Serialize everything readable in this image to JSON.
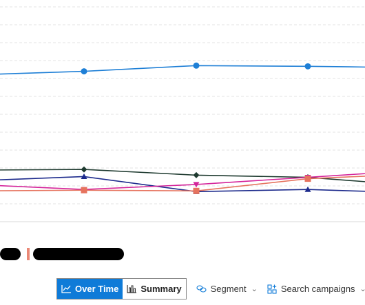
{
  "chart_data": {
    "type": "line",
    "x": [
      0,
      1,
      2,
      3,
      4
    ],
    "ylim": [
      0,
      300
    ],
    "grid": true,
    "series": [
      {
        "color": "#1e7fd6",
        "marker": "circle",
        "values": [
          205,
          210,
          218,
          217,
          215
        ]
      },
      {
        "color": "#1e3a2f",
        "marker": "diamond",
        "values": [
          72,
          73,
          65,
          62,
          50
        ]
      },
      {
        "color": "#1c2a8c",
        "marker": "triangle-up",
        "values": [
          57,
          63,
          42,
          45,
          40
        ]
      },
      {
        "color": "#d4239a",
        "marker": "triangle-down",
        "values": [
          52,
          45,
          52,
          62,
          72
        ]
      },
      {
        "color": "#e6735e",
        "marker": "square",
        "values": [
          43,
          44,
          43,
          60,
          67
        ]
      }
    ]
  },
  "toolbar": {
    "over_time_label": "Over Time",
    "summary_label": "Summary",
    "segment_label": "Segment",
    "search_campaigns_label": "Search campaigns",
    "accent_color": "#0f7bd8",
    "over_time_icon": "line-chart-icon",
    "summary_icon": "bar-chart-icon",
    "segment_icon": "segment-icon",
    "campaigns_icon": "campaigns-icon"
  }
}
